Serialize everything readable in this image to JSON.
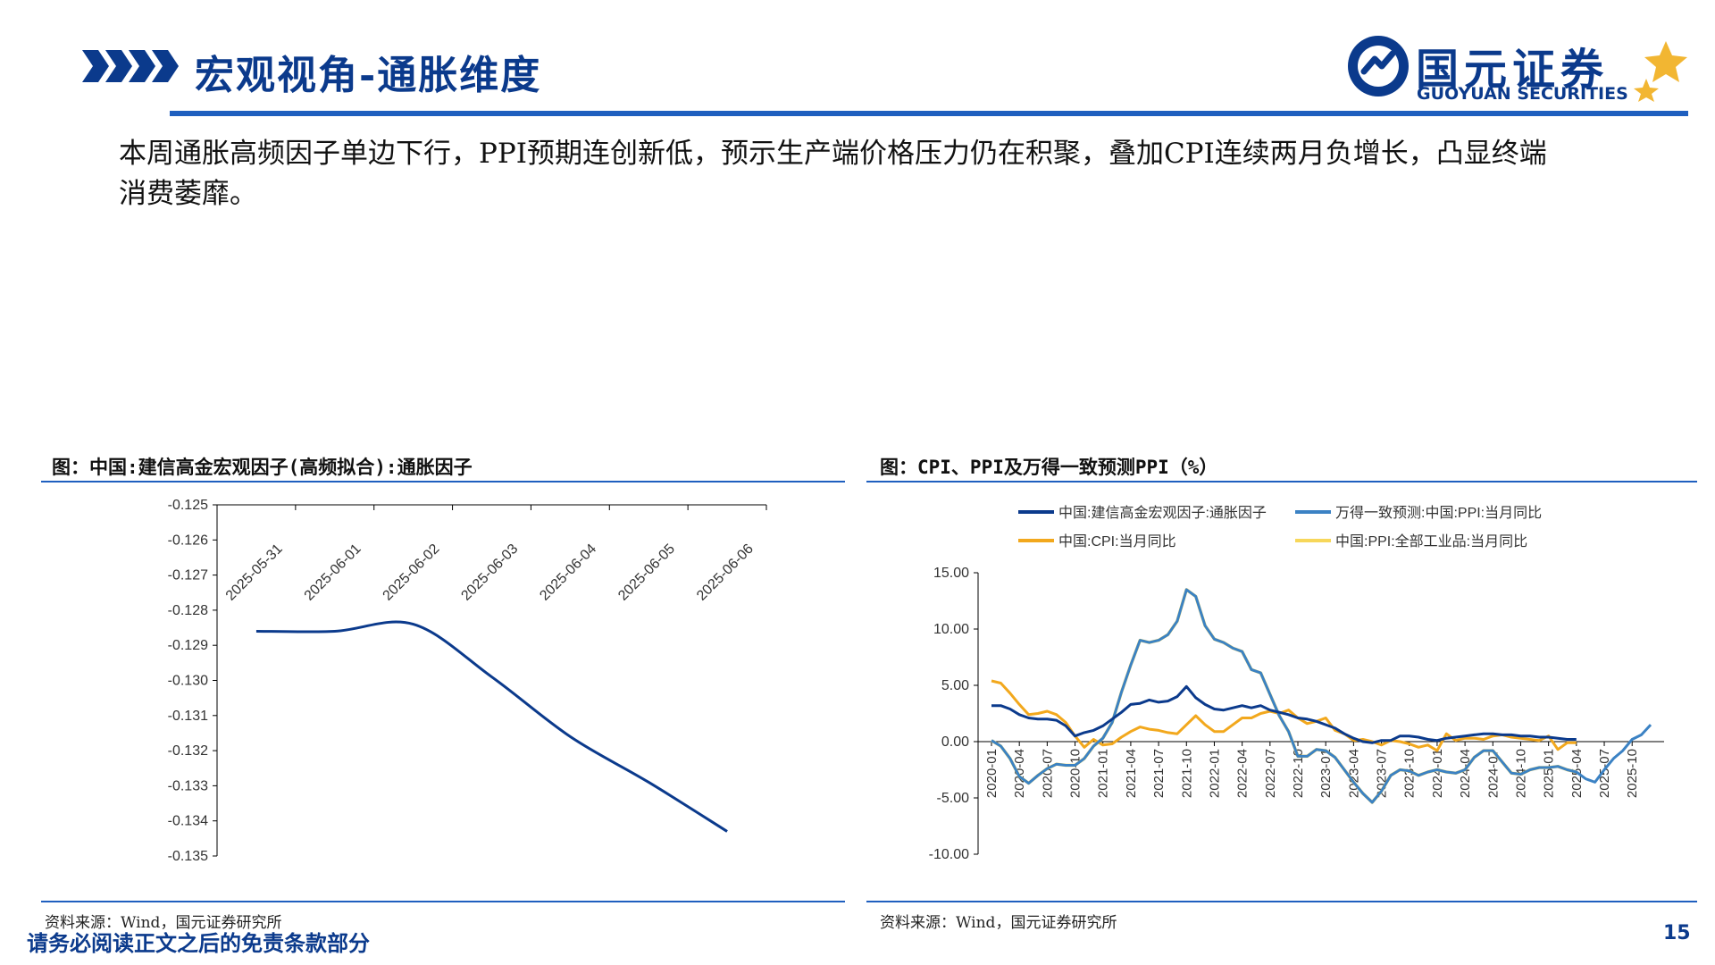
{
  "header": {
    "title": "宏观视角-通胀维度",
    "logo_name": "国元证券",
    "logo_en": "GUOYUAN SECURITIES",
    "colors": {
      "brand": "#0b3a8c",
      "accent": "#1f5fbf",
      "gold": "#f2b632"
    }
  },
  "summary": "本周通胀高频因子单边下行，PPI预期连创新低，预示生产端价格压力仍在积聚，叠加CPI连续两月负增长，凸显终端消费萎靡。",
  "figures": [
    {
      "title": "图：中国:建信高金宏观因子(高频拟合):通胀因子",
      "source": "资料来源：Wind，国元证券研究所"
    },
    {
      "title": "图：CPI、PPI及万得一致预测PPI（%）",
      "source": "资料来源：Wind，国元证券研究所"
    }
  ],
  "footer": {
    "disclaimer": "请务必阅读正文之后的免责条款部分",
    "page_number": "15"
  },
  "chart_data": [
    {
      "type": "line",
      "title": "",
      "x": [
        "2025-05-31",
        "2025-06-01",
        "2025-06-02",
        "2025-06-03",
        "2025-06-04",
        "2025-06-05",
        "2025-06-06"
      ],
      "y_ticks": [
        "-0.125",
        "-0.126",
        "-0.127",
        "-0.128",
        "-0.129",
        "-0.130",
        "-0.131",
        "-0.132",
        "-0.133",
        "-0.134",
        "-0.135"
      ],
      "ylim": [
        -0.135,
        -0.125
      ],
      "y_inverted_axis_on_top": true,
      "series": [
        {
          "name": "",
          "color": "#0b3a8c",
          "values": [
            -0.1286,
            -0.1286,
            -0.1284,
            -0.1299,
            -0.1316,
            -0.1329,
            -0.1343
          ]
        }
      ]
    },
    {
      "type": "line",
      "title": "",
      "x": [
        "2020-01",
        "2020-02",
        "2020-03",
        "2020-04",
        "2020-05",
        "2020-06",
        "2020-07",
        "2020-08",
        "2020-09",
        "2020-10",
        "2020-11",
        "2020-12",
        "2021-01",
        "2021-02",
        "2021-03",
        "2021-04",
        "2021-05",
        "2021-06",
        "2021-07",
        "2021-08",
        "2021-09",
        "2021-10",
        "2021-11",
        "2021-12",
        "2022-01",
        "2022-02",
        "2022-03",
        "2022-04",
        "2022-05",
        "2022-06",
        "2022-07",
        "2022-08",
        "2022-09",
        "2022-10",
        "2022-11",
        "2022-12",
        "2023-01",
        "2023-02",
        "2023-03",
        "2023-04",
        "2023-05",
        "2023-06",
        "2023-07",
        "2023-08",
        "2023-09",
        "2023-10",
        "2023-11",
        "2023-12",
        "2024-01",
        "2024-02",
        "2024-03",
        "2024-04",
        "2024-05",
        "2024-06",
        "2024-07",
        "2024-08",
        "2024-09",
        "2024-10",
        "2024-11",
        "2024-12",
        "2025-01",
        "2025-02",
        "2025-03",
        "2025-04",
        "2025-05",
        "2025-06",
        "2025-07",
        "2025-08",
        "2025-09",
        "2025-10",
        "2025-11",
        "2025-12"
      ],
      "x_ticks": [
        "2020-01",
        "2020-04",
        "2020-07",
        "2020-10",
        "2021-01",
        "2021-04",
        "2021-07",
        "2021-10",
        "2022-01",
        "2022-04",
        "2022-07",
        "2022-10",
        "2023-01",
        "2023-04",
        "2023-07",
        "2023-10",
        "2024-01",
        "2024-04",
        "2024-07",
        "2024-10",
        "2025-01",
        "2025-04",
        "2025-07",
        "2025-10"
      ],
      "y_ticks": [
        "15.00",
        "10.00",
        "5.00",
        "0.00",
        "-5.00",
        "-10.00"
      ],
      "ylim": [
        -10,
        15
      ],
      "legend_position": "top",
      "series": [
        {
          "name": "中国:建信高金宏观因子:通胀因子",
          "color": "#0b3a8c",
          "values": [
            3.2,
            3.2,
            2.9,
            2.4,
            2.1,
            2.0,
            2.0,
            1.9,
            1.4,
            0.5,
            0.8,
            1.0,
            1.4,
            2.0,
            2.6,
            3.3,
            3.4,
            3.7,
            3.5,
            3.6,
            4.0,
            4.9,
            3.9,
            3.3,
            2.9,
            2.8,
            3.0,
            3.2,
            3.0,
            3.2,
            2.8,
            2.6,
            2.4,
            2.1,
            2.0,
            1.8,
            1.5,
            1.2,
            0.7,
            0.3,
            0.0,
            -0.1,
            0.1,
            0.1,
            0.5,
            0.5,
            0.4,
            0.2,
            0.1,
            0.3,
            0.4,
            0.5,
            0.6,
            0.7,
            0.7,
            0.6,
            0.6,
            0.5,
            0.5,
            0.4,
            0.4,
            0.3,
            0.2,
            0.2,
            null,
            null,
            null,
            null,
            null,
            null,
            null,
            null
          ]
        },
        {
          "name": "万得一致预测:中国:PPI:当月同比",
          "color": "#3b82c4",
          "values": [
            0.1,
            -0.4,
            -1.5,
            -3.1,
            -3.7,
            -3.0,
            -2.4,
            -2.0,
            -2.1,
            -2.1,
            -1.5,
            -0.4,
            0.3,
            1.7,
            4.4,
            6.8,
            9.0,
            8.8,
            9.0,
            9.5,
            10.7,
            13.5,
            12.9,
            10.3,
            9.1,
            8.8,
            8.3,
            8.0,
            6.4,
            6.1,
            4.2,
            2.3,
            0.9,
            -1.3,
            -1.3,
            -0.7,
            -0.8,
            -1.4,
            -2.5,
            -3.6,
            -4.6,
            -5.4,
            -4.4,
            -3.0,
            -2.5,
            -2.6,
            -3.0,
            -2.7,
            -2.5,
            -2.7,
            -2.8,
            -2.5,
            -1.4,
            -0.8,
            -0.8,
            -1.8,
            -2.8,
            -2.9,
            -2.5,
            -2.3,
            -2.3,
            -2.2,
            -2.5,
            -2.7,
            -3.3,
            -3.6,
            -2.5,
            -1.5,
            -0.8,
            0.2,
            0.6,
            1.5
          ]
        },
        {
          "name": "中国:CPI:当月同比",
          "color": "#f2a81d",
          "values": [
            5.4,
            5.2,
            4.3,
            3.3,
            2.4,
            2.5,
            2.7,
            2.4,
            1.7,
            0.5,
            -0.5,
            0.2,
            -0.3,
            -0.2,
            0.4,
            0.9,
            1.3,
            1.1,
            1.0,
            0.8,
            0.7,
            1.5,
            2.3,
            1.5,
            0.9,
            0.9,
            1.5,
            2.1,
            2.1,
            2.5,
            2.7,
            2.5,
            2.8,
            2.1,
            1.6,
            1.8,
            2.1,
            1.0,
            0.7,
            0.1,
            0.2,
            0.0,
            -0.3,
            0.1,
            0.0,
            -0.2,
            -0.5,
            -0.3,
            -0.8,
            0.7,
            0.1,
            0.3,
            0.3,
            0.2,
            0.5,
            0.6,
            0.4,
            0.3,
            0.2,
            0.1,
            0.5,
            -0.7,
            -0.1,
            -0.1,
            null,
            null,
            null,
            null,
            null,
            null,
            null,
            null
          ]
        },
        {
          "name": "中国:PPI:全部工业品:当月同比",
          "color": "#f7d75a",
          "values": [
            0.1,
            -0.4,
            -1.5,
            -3.1,
            -3.7,
            -3.0,
            -2.4,
            -2.0,
            -2.1,
            -2.1,
            -1.5,
            -0.4,
            0.3,
            1.7,
            4.4,
            6.8,
            9.0,
            8.8,
            9.0,
            9.5,
            10.7,
            13.5,
            12.9,
            10.3,
            9.1,
            8.8,
            8.3,
            8.0,
            6.4,
            6.1,
            4.2,
            2.3,
            0.9,
            -1.3,
            -1.3,
            -0.7,
            -0.8,
            -1.4,
            -2.5,
            -3.6,
            -4.6,
            -5.4,
            -4.4,
            -3.0,
            -2.5,
            -2.6,
            -3.0,
            -2.7,
            -2.5,
            -2.7,
            -2.8,
            -2.5,
            -1.4,
            -0.8,
            -0.8,
            -1.8,
            -2.8,
            -2.9,
            -2.5,
            -2.3,
            -2.3,
            -2.2,
            -2.5,
            -2.7,
            null,
            null,
            null,
            null,
            null,
            null,
            null,
            null
          ]
        }
      ]
    }
  ]
}
